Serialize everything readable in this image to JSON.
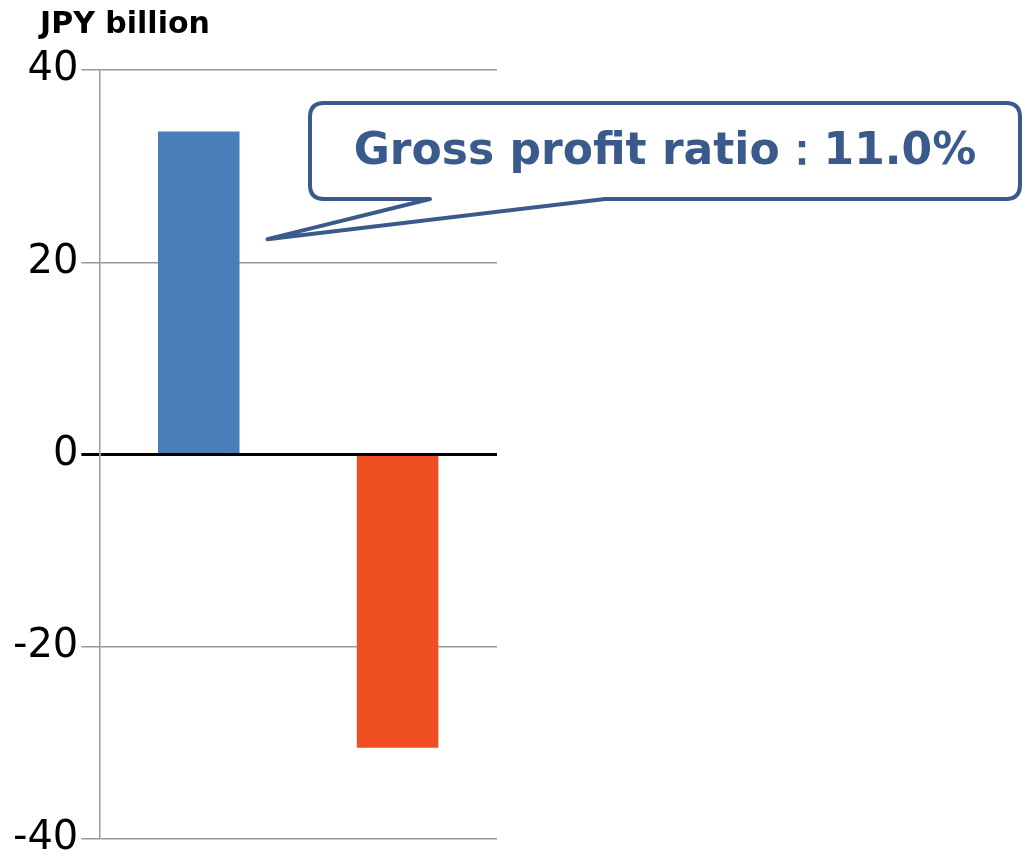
{
  "chart_data": {
    "type": "bar",
    "ylabel": "JPY billion",
    "categories": [
      null,
      null
    ],
    "values": [
      33.6,
      -30.5
    ],
    "colors": [
      "#4a7ebb",
      "#f04e23"
    ],
    "ylim": [
      -40,
      40
    ],
    "yticks": [
      -40,
      -20,
      0,
      20,
      40
    ],
    "grid": "y",
    "legend": false,
    "annotations": [
      "Gross profit ratio：11.0%"
    ]
  }
}
